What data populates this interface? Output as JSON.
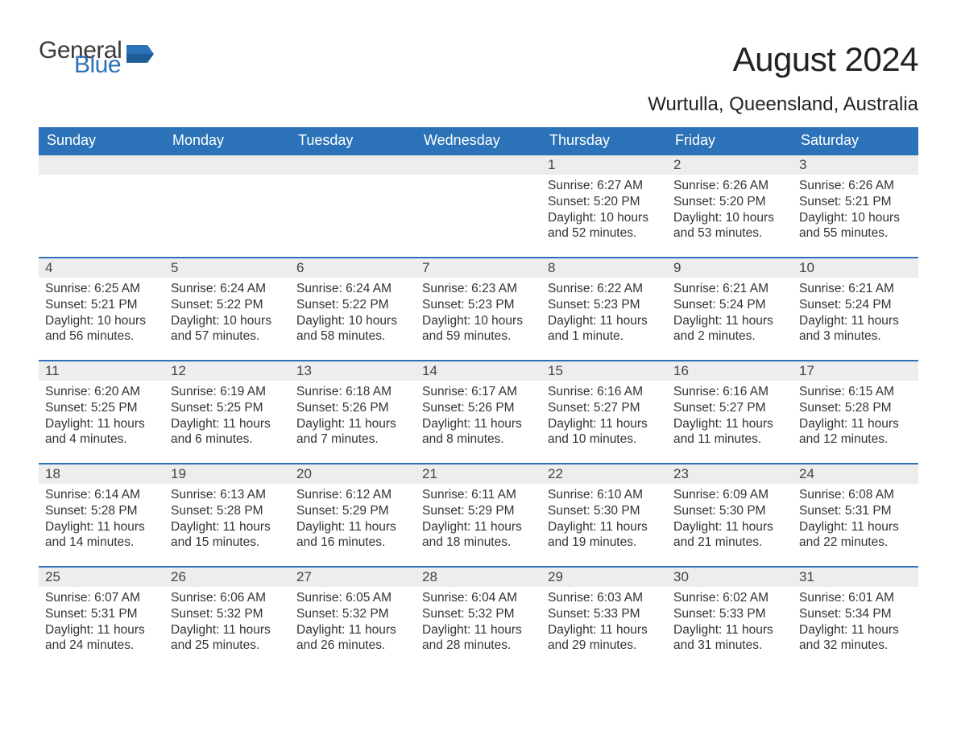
{
  "brand": {
    "word1": "General",
    "word2": "Blue",
    "logo_color": "#2b72b8"
  },
  "title": "August 2024",
  "location": "Wurtulla, Queensland, Australia",
  "colors": {
    "header_bg": "#2b72b8",
    "header_text": "#ffffff",
    "day_strip_bg": "#ededed",
    "row_divider": "#2b72b8",
    "body_text": "#333333",
    "page_bg": "#ffffff"
  },
  "typography": {
    "title_fontsize": 42,
    "location_fontsize": 24,
    "header_fontsize": 18,
    "daynum_fontsize": 17,
    "detail_fontsize": 15.5
  },
  "layout": {
    "columns": 7,
    "rows": 5,
    "first_day_column_index": 4
  },
  "headers": [
    "Sunday",
    "Monday",
    "Tuesday",
    "Wednesday",
    "Thursday",
    "Friday",
    "Saturday"
  ],
  "weeks": [
    [
      null,
      null,
      null,
      null,
      {
        "day": "1",
        "sunrise": "6:27 AM",
        "sunset": "5:20 PM",
        "daylight": "10 hours and 52 minutes."
      },
      {
        "day": "2",
        "sunrise": "6:26 AM",
        "sunset": "5:20 PM",
        "daylight": "10 hours and 53 minutes."
      },
      {
        "day": "3",
        "sunrise": "6:26 AM",
        "sunset": "5:21 PM",
        "daylight": "10 hours and 55 minutes."
      }
    ],
    [
      {
        "day": "4",
        "sunrise": "6:25 AM",
        "sunset": "5:21 PM",
        "daylight": "10 hours and 56 minutes."
      },
      {
        "day": "5",
        "sunrise": "6:24 AM",
        "sunset": "5:22 PM",
        "daylight": "10 hours and 57 minutes."
      },
      {
        "day": "6",
        "sunrise": "6:24 AM",
        "sunset": "5:22 PM",
        "daylight": "10 hours and 58 minutes."
      },
      {
        "day": "7",
        "sunrise": "6:23 AM",
        "sunset": "5:23 PM",
        "daylight": "10 hours and 59 minutes."
      },
      {
        "day": "8",
        "sunrise": "6:22 AM",
        "sunset": "5:23 PM",
        "daylight": "11 hours and 1 minute."
      },
      {
        "day": "9",
        "sunrise": "6:21 AM",
        "sunset": "5:24 PM",
        "daylight": "11 hours and 2 minutes."
      },
      {
        "day": "10",
        "sunrise": "6:21 AM",
        "sunset": "5:24 PM",
        "daylight": "11 hours and 3 minutes."
      }
    ],
    [
      {
        "day": "11",
        "sunrise": "6:20 AM",
        "sunset": "5:25 PM",
        "daylight": "11 hours and 4 minutes."
      },
      {
        "day": "12",
        "sunrise": "6:19 AM",
        "sunset": "5:25 PM",
        "daylight": "11 hours and 6 minutes."
      },
      {
        "day": "13",
        "sunrise": "6:18 AM",
        "sunset": "5:26 PM",
        "daylight": "11 hours and 7 minutes."
      },
      {
        "day": "14",
        "sunrise": "6:17 AM",
        "sunset": "5:26 PM",
        "daylight": "11 hours and 8 minutes."
      },
      {
        "day": "15",
        "sunrise": "6:16 AM",
        "sunset": "5:27 PM",
        "daylight": "11 hours and 10 minutes."
      },
      {
        "day": "16",
        "sunrise": "6:16 AM",
        "sunset": "5:27 PM",
        "daylight": "11 hours and 11 minutes."
      },
      {
        "day": "17",
        "sunrise": "6:15 AM",
        "sunset": "5:28 PM",
        "daylight": "11 hours and 12 minutes."
      }
    ],
    [
      {
        "day": "18",
        "sunrise": "6:14 AM",
        "sunset": "5:28 PM",
        "daylight": "11 hours and 14 minutes."
      },
      {
        "day": "19",
        "sunrise": "6:13 AM",
        "sunset": "5:28 PM",
        "daylight": "11 hours and 15 minutes."
      },
      {
        "day": "20",
        "sunrise": "6:12 AM",
        "sunset": "5:29 PM",
        "daylight": "11 hours and 16 minutes."
      },
      {
        "day": "21",
        "sunrise": "6:11 AM",
        "sunset": "5:29 PM",
        "daylight": "11 hours and 18 minutes."
      },
      {
        "day": "22",
        "sunrise": "6:10 AM",
        "sunset": "5:30 PM",
        "daylight": "11 hours and 19 minutes."
      },
      {
        "day": "23",
        "sunrise": "6:09 AM",
        "sunset": "5:30 PM",
        "daylight": "11 hours and 21 minutes."
      },
      {
        "day": "24",
        "sunrise": "6:08 AM",
        "sunset": "5:31 PM",
        "daylight": "11 hours and 22 minutes."
      }
    ],
    [
      {
        "day": "25",
        "sunrise": "6:07 AM",
        "sunset": "5:31 PM",
        "daylight": "11 hours and 24 minutes."
      },
      {
        "day": "26",
        "sunrise": "6:06 AM",
        "sunset": "5:32 PM",
        "daylight": "11 hours and 25 minutes."
      },
      {
        "day": "27",
        "sunrise": "6:05 AM",
        "sunset": "5:32 PM",
        "daylight": "11 hours and 26 minutes."
      },
      {
        "day": "28",
        "sunrise": "6:04 AM",
        "sunset": "5:32 PM",
        "daylight": "11 hours and 28 minutes."
      },
      {
        "day": "29",
        "sunrise": "6:03 AM",
        "sunset": "5:33 PM",
        "daylight": "11 hours and 29 minutes."
      },
      {
        "day": "30",
        "sunrise": "6:02 AM",
        "sunset": "5:33 PM",
        "daylight": "11 hours and 31 minutes."
      },
      {
        "day": "31",
        "sunrise": "6:01 AM",
        "sunset": "5:34 PM",
        "daylight": "11 hours and 32 minutes."
      }
    ]
  ],
  "labels": {
    "sunrise": "Sunrise: ",
    "sunset": "Sunset: ",
    "daylight": "Daylight: "
  }
}
